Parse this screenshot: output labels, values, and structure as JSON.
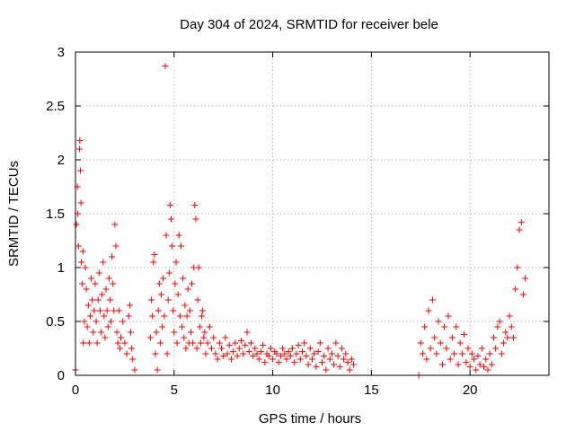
{
  "chart_data": {
    "type": "scatter",
    "title": "Day 304 of 2024, SRMTID for receiver bele",
    "xlabel": "GPS time / hours",
    "ylabel": "SRMTID / TECUs",
    "xlim": [
      0,
      24
    ],
    "ylim": [
      0,
      3
    ],
    "xticks": [
      0,
      5,
      10,
      15,
      20
    ],
    "yticks": [
      0,
      0.5,
      1,
      1.5,
      2,
      2.5,
      3
    ],
    "xtick_labels": [
      "0",
      "5",
      "10",
      "15",
      "20"
    ],
    "ytick_labels": [
      "0",
      "0.5",
      "1",
      "1.5",
      "2",
      "2.5",
      "3"
    ],
    "grid": true,
    "marker": "plus",
    "series": [
      {
        "name": "SRMTID",
        "color": "#ff0000",
        "x": [
          0.0,
          0.05,
          0.1,
          0.12,
          0.15,
          0.2,
          0.22,
          0.25,
          0.28,
          0.3,
          0.35,
          0.38,
          0.4,
          0.45,
          0.5,
          0.55,
          0.6,
          0.65,
          0.7,
          0.75,
          0.8,
          0.85,
          0.9,
          0.95,
          1.0,
          1.05,
          1.1,
          1.15,
          1.2,
          1.25,
          1.3,
          1.35,
          1.4,
          1.45,
          1.5,
          1.55,
          1.6,
          1.65,
          1.7,
          1.75,
          1.8,
          1.85,
          1.9,
          1.95,
          2.0,
          2.05,
          2.1,
          2.15,
          2.2,
          2.25,
          2.3,
          2.4,
          2.5,
          2.6,
          2.7,
          2.75,
          2.8,
          2.85,
          2.9,
          3.0,
          3.8,
          3.85,
          3.9,
          3.95,
          4.0,
          4.05,
          4.1,
          4.15,
          4.2,
          4.25,
          4.3,
          4.35,
          4.4,
          4.45,
          4.5,
          4.55,
          4.6,
          4.65,
          4.7,
          4.75,
          4.8,
          4.85,
          4.9,
          4.95,
          5.0,
          5.05,
          5.1,
          5.15,
          5.2,
          5.25,
          5.3,
          5.35,
          5.4,
          5.45,
          5.5,
          5.55,
          5.6,
          5.65,
          5.7,
          5.75,
          5.8,
          5.85,
          5.9,
          5.95,
          6.0,
          6.05,
          6.1,
          6.15,
          6.2,
          6.25,
          6.3,
          6.35,
          6.4,
          6.45,
          6.5,
          6.55,
          6.6,
          6.7,
          6.8,
          6.9,
          7.0,
          7.1,
          7.2,
          7.3,
          7.4,
          7.5,
          7.6,
          7.7,
          7.8,
          7.9,
          8.0,
          8.1,
          8.2,
          8.3,
          8.4,
          8.5,
          8.6,
          8.7,
          8.8,
          8.9,
          9.0,
          9.1,
          9.2,
          9.3,
          9.4,
          9.5,
          9.6,
          9.7,
          9.8,
          9.9,
          10.0,
          10.1,
          10.2,
          10.3,
          10.4,
          10.5,
          10.6,
          10.7,
          10.8,
          10.9,
          11.0,
          11.1,
          11.2,
          11.3,
          11.4,
          11.5,
          11.6,
          11.7,
          11.8,
          11.9,
          12.0,
          12.1,
          12.2,
          12.3,
          12.4,
          12.5,
          12.6,
          12.7,
          12.8,
          12.9,
          13.0,
          13.1,
          13.2,
          13.3,
          13.4,
          13.5,
          13.6,
          13.7,
          13.8,
          13.9,
          14.0,
          14.1,
          17.4,
          17.5,
          17.6,
          17.7,
          17.8,
          17.9,
          18.0,
          18.1,
          18.2,
          18.3,
          18.4,
          18.5,
          18.6,
          18.7,
          18.8,
          18.9,
          19.0,
          19.1,
          19.2,
          19.3,
          19.4,
          19.5,
          19.6,
          19.7,
          19.8,
          19.9,
          20.0,
          20.1,
          20.2,
          20.3,
          20.4,
          20.5,
          20.6,
          20.7,
          20.8,
          20.9,
          21.0,
          21.1,
          21.2,
          21.3,
          21.4,
          21.5,
          21.6,
          21.7,
          21.8,
          21.9,
          22.0,
          22.1,
          22.2,
          22.3,
          22.4,
          22.5,
          22.6,
          22.7,
          22.8
        ],
        "y": [
          0.05,
          1.4,
          1.75,
          1.5,
          1.2,
          2.1,
          2.18,
          1.9,
          1.6,
          1.05,
          0.85,
          1.15,
          0.3,
          0.5,
          1.0,
          0.8,
          0.45,
          0.65,
          0.3,
          0.55,
          0.9,
          0.7,
          0.4,
          0.6,
          0.85,
          0.5,
          0.3,
          0.7,
          0.95,
          0.6,
          0.4,
          0.75,
          1.05,
          0.55,
          0.35,
          0.8,
          0.6,
          0.45,
          0.9,
          0.7,
          0.5,
          1.1,
          0.85,
          0.6,
          1.4,
          1.2,
          0.4,
          0.3,
          0.6,
          0.25,
          0.35,
          0.5,
          0.3,
          0.2,
          0.55,
          0.65,
          0.4,
          0.25,
          0.15,
          0.05,
          0.35,
          0.7,
          0.55,
          1.05,
          1.12,
          0.2,
          0.4,
          0.05,
          0.6,
          0.85,
          0.3,
          0.75,
          0.45,
          0.9,
          0.55,
          2.87,
          1.3,
          0.2,
          0.7,
          0.95,
          1.58,
          1.45,
          1.2,
          0.6,
          0.4,
          0.85,
          1.05,
          0.3,
          0.75,
          1.3,
          0.55,
          1.2,
          0.45,
          0.9,
          0.35,
          0.65,
          0.25,
          0.55,
          0.8,
          0.3,
          0.6,
          0.4,
          0.85,
          0.3,
          1.0,
          1.58,
          1.45,
          0.25,
          0.7,
          1.0,
          0.45,
          0.3,
          0.55,
          0.6,
          0.35,
          0.4,
          0.2,
          0.3,
          0.45,
          0.25,
          0.35,
          0.2,
          0.15,
          0.3,
          0.25,
          0.18,
          0.35,
          0.2,
          0.28,
          0.15,
          0.22,
          0.3,
          0.18,
          0.25,
          0.32,
          0.2,
          0.28,
          0.4,
          0.22,
          0.3,
          0.18,
          0.25,
          0.2,
          0.15,
          0.22,
          0.28,
          0.12,
          0.2,
          0.18,
          0.25,
          0.15,
          0.22,
          0.2,
          0.12,
          0.18,
          0.25,
          0.2,
          0.15,
          0.22,
          0.18,
          0.25,
          0.12,
          0.2,
          0.28,
          0.15,
          0.22,
          0.3,
          0.18,
          0.1,
          0.25,
          0.15,
          0.2,
          0.08,
          0.22,
          0.3,
          0.12,
          0.18,
          0.05,
          0.25,
          0.15,
          0.2,
          0.1,
          0.3,
          0.18,
          0.08,
          0.25,
          0.15,
          0.2,
          0.12,
          0.05,
          0.15,
          0.1,
          0.0,
          0.3,
          0.2,
          0.45,
          0.15,
          0.6,
          0.25,
          0.7,
          0.35,
          0.2,
          0.5,
          0.3,
          0.1,
          0.45,
          0.25,
          0.55,
          0.15,
          0.35,
          0.2,
          0.45,
          0.1,
          0.3,
          0.2,
          0.38,
          0.12,
          0.25,
          0.08,
          0.2,
          0.15,
          0.05,
          0.18,
          0.1,
          0.25,
          0.08,
          0.15,
          0.05,
          0.2,
          0.1,
          0.35,
          0.25,
          0.45,
          0.5,
          0.2,
          0.3,
          0.4,
          0.35,
          0.55,
          0.45,
          0.35,
          0.8,
          1.0,
          1.35,
          1.42,
          0.75,
          0.9
        ]
      }
    ]
  }
}
